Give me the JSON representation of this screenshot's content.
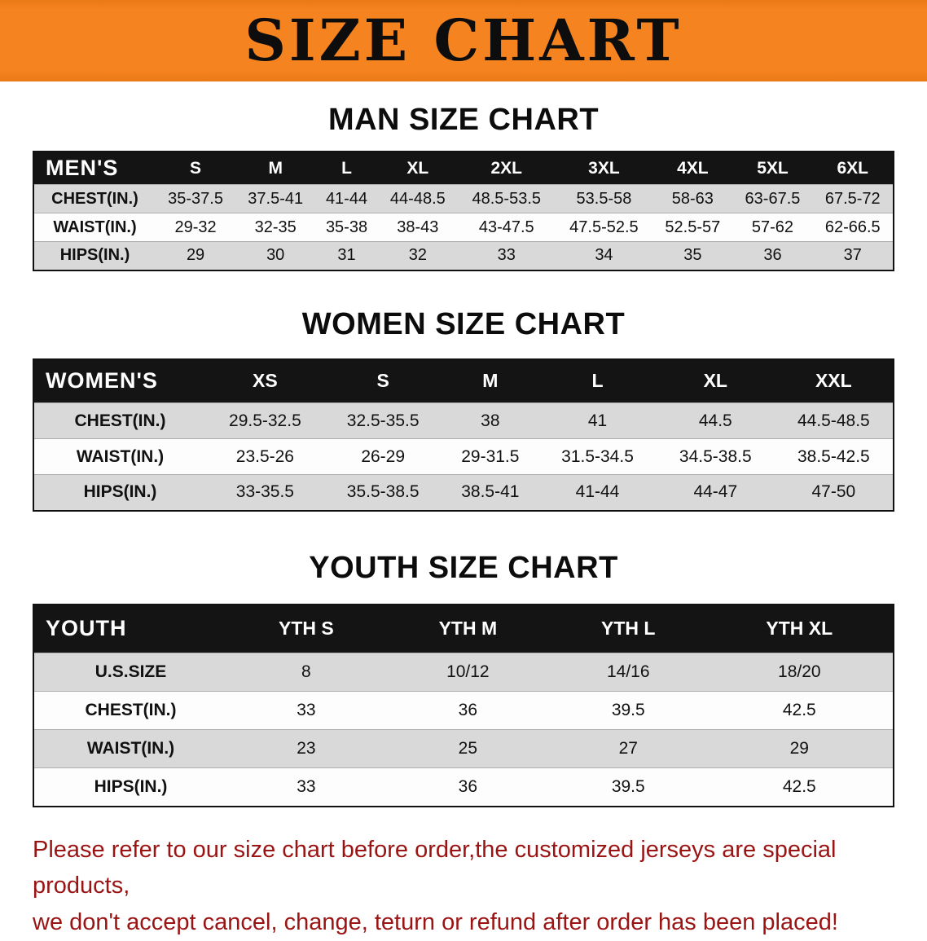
{
  "banner": {
    "title": "SIZE CHART",
    "bg_color": "#f5831f"
  },
  "sections": [
    {
      "heading": "MAN SIZE CHART",
      "table": {
        "header": [
          "MEN'S",
          "S",
          "M",
          "L",
          "XL",
          "2XL",
          "3XL",
          "4XL",
          "5XL",
          "6XL"
        ],
        "rows": [
          {
            "label": "CHEST(IN.)",
            "values": [
              "35-37.5",
              "37.5-41",
              "41-44",
              "44-48.5",
              "48.5-53.5",
              "53.5-58",
              "58-63",
              "63-67.5",
              "67.5-72"
            ]
          },
          {
            "label": "WAIST(IN.)",
            "values": [
              "29-32",
              "32-35",
              "35-38",
              "38-43",
              "43-47.5",
              "47.5-52.5",
              "52.5-57",
              "57-62",
              "62-66.5"
            ]
          },
          {
            "label": "HIPS(IN.)",
            "values": [
              "29",
              "30",
              "31",
              "32",
              "33",
              "34",
              "35",
              "36",
              "37"
            ]
          }
        ]
      }
    },
    {
      "heading": "WOMEN SIZE CHART",
      "table": {
        "header": [
          "WOMEN'S",
          "XS",
          "S",
          "M",
          "L",
          "XL",
          "XXL"
        ],
        "rows": [
          {
            "label": "CHEST(IN.)",
            "values": [
              "29.5-32.5",
              "32.5-35.5",
              "38",
              "41",
              "44.5",
              "44.5-48.5"
            ]
          },
          {
            "label": "WAIST(IN.)",
            "values": [
              "23.5-26",
              "26-29",
              "29-31.5",
              "31.5-34.5",
              "34.5-38.5",
              "38.5-42.5"
            ]
          },
          {
            "label": "HIPS(IN.)",
            "values": [
              "33-35.5",
              "35.5-38.5",
              "38.5-41",
              "41-44",
              "44-47",
              "47-50"
            ]
          }
        ]
      }
    },
    {
      "heading": "YOUTH SIZE CHART",
      "table": {
        "header": [
          "YOUTH",
          "YTH S",
          "YTH M",
          "YTH L",
          "YTH XL"
        ],
        "rows": [
          {
            "label": "U.S.SIZE",
            "values": [
              "8",
              "10/12",
              "14/16",
              "18/20"
            ]
          },
          {
            "label": "CHEST(IN.)",
            "values": [
              "33",
              "36",
              "39.5",
              "42.5"
            ]
          },
          {
            "label": "WAIST(IN.)",
            "values": [
              "23",
              "25",
              "27",
              "29"
            ]
          },
          {
            "label": "HIPS(IN.)",
            "values": [
              "33",
              "36",
              "39.5",
              "42.5"
            ]
          }
        ]
      }
    }
  ],
  "footer": {
    "line1": "Please refer to our size chart before order,the customized jerseys are special products,",
    "line2": "we don't accept cancel, change, teturn or refund after order has been placed!",
    "text_color": "#9b1414"
  }
}
